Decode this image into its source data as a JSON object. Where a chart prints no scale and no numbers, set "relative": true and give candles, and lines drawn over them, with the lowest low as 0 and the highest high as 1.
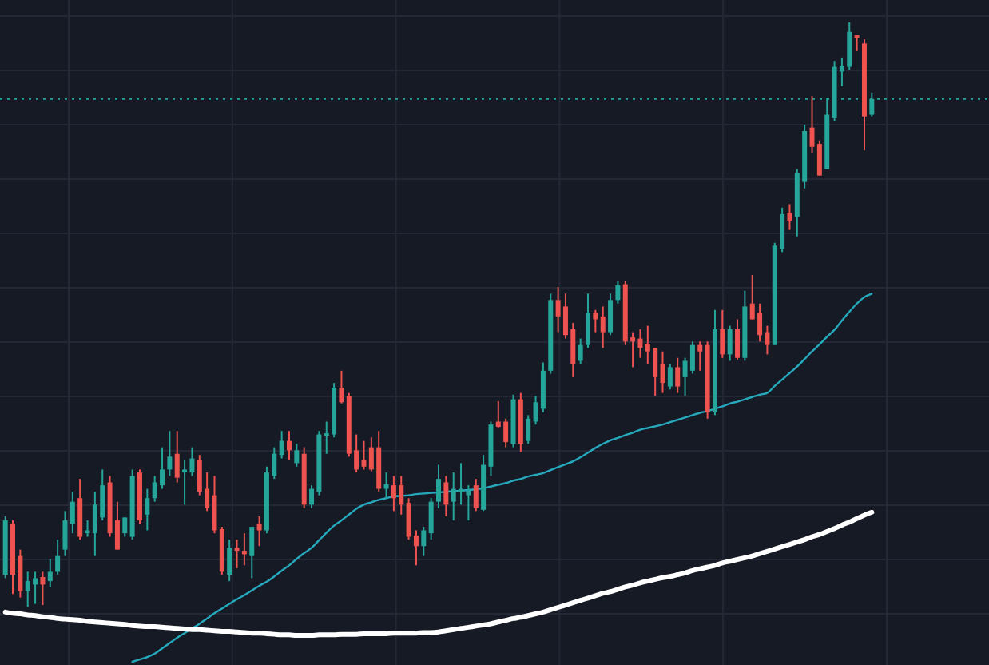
{
  "chart_data": {
    "type": "candlestick",
    "relative": true,
    "grid": true,
    "tick_labels": false,
    "categories": [
      null,
      null,
      null,
      null,
      null,
      null,
      null,
      null,
      null,
      null,
      null,
      null,
      null,
      null,
      null,
      null,
      null,
      null,
      null,
      null,
      null,
      null,
      null,
      null,
      null,
      null,
      null,
      null,
      null,
      null,
      null,
      null,
      null,
      null,
      null,
      null,
      null,
      null,
      null,
      null,
      null,
      null,
      null,
      null,
      null,
      null,
      null,
      null,
      null,
      null,
      null,
      null,
      null,
      null,
      null,
      null,
      null,
      null,
      null,
      null,
      null,
      null,
      null,
      null,
      null,
      null,
      null,
      null,
      null,
      null,
      null,
      null,
      null,
      null,
      null,
      null,
      null,
      null,
      null,
      null,
      null,
      null,
      null,
      null,
      null,
      null,
      null,
      null,
      null,
      null,
      null,
      null,
      null,
      null,
      null,
      null,
      null,
      null,
      null,
      null,
      null,
      null,
      null,
      null,
      null,
      null,
      null,
      null,
      null,
      null,
      null,
      null,
      null,
      null,
      null,
      null,
      null
    ],
    "ohlc": [
      [
        0.055,
        0.155,
        0.049,
        0.148
      ],
      [
        0.142,
        0.148,
        0.022,
        0.055
      ],
      [
        0.087,
        0.098,
        0.016,
        0.027
      ],
      [
        0.027,
        0.06,
        0,
        0.044
      ],
      [
        0.038,
        0.06,
        0.005,
        0.049
      ],
      [
        0.051,
        0.06,
        0.003,
        0.038
      ],
      [
        0.044,
        0.082,
        0.033,
        0.06
      ],
      [
        0.06,
        0.115,
        0.055,
        0.087
      ],
      [
        0.098,
        0.164,
        0.087,
        0.148
      ],
      [
        0.142,
        0.197,
        0.126,
        0.18
      ],
      [
        0.186,
        0.219,
        0.115,
        0.12
      ],
      [
        0.126,
        0.148,
        0.12,
        0.131
      ],
      [
        0.126,
        0.197,
        0.087,
        0.175
      ],
      [
        0.153,
        0.235,
        0.148,
        0.208
      ],
      [
        0.213,
        0.224,
        0.12,
        0.126
      ],
      [
        0.148,
        0.18,
        0.098,
        0.098
      ],
      [
        0.126,
        0.153,
        0.12,
        0.153
      ],
      [
        0.12,
        0.235,
        0.115,
        0.224
      ],
      [
        0.23,
        0.235,
        0.142,
        0.148
      ],
      [
        0.158,
        0.202,
        0.131,
        0.186
      ],
      [
        0.186,
        0.224,
        0.18,
        0.213
      ],
      [
        0.208,
        0.273,
        0.202,
        0.235
      ],
      [
        0.235,
        0.301,
        0.224,
        0.257
      ],
      [
        0.262,
        0.301,
        0.213,
        0.221
      ],
      [
        0.23,
        0.251,
        0.175,
        0.235
      ],
      [
        0.23,
        0.273,
        0.224,
        0.254
      ],
      [
        0.251,
        0.26,
        0.191,
        0.197
      ],
      [
        0.202,
        0.23,
        0.164,
        0.169
      ],
      [
        0.191,
        0.224,
        0.126,
        0.131
      ],
      [
        0.133,
        0.137,
        0.055,
        0.06
      ],
      [
        0.055,
        0.115,
        0.044,
        0.101
      ],
      [
        0.101,
        0.115,
        0.066,
        0.096
      ],
      [
        0.096,
        0.126,
        0.071,
        0.09
      ],
      [
        0.087,
        0.137,
        0.049,
        0.137
      ],
      [
        0.142,
        0.155,
        0.104,
        0.131
      ],
      [
        0.131,
        0.24,
        0.126,
        0.23
      ],
      [
        0.224,
        0.273,
        0.219,
        0.262
      ],
      [
        0.26,
        0.301,
        0.254,
        0.284
      ],
      [
        0.284,
        0.301,
        0.251,
        0.268
      ],
      [
        0.246,
        0.279,
        0.24,
        0.268
      ],
      [
        0.262,
        0.273,
        0.169,
        0.175
      ],
      [
        0.175,
        0.208,
        0.169,
        0.202
      ],
      [
        0.197,
        0.301,
        0.191,
        0.295
      ],
      [
        0.293,
        0.317,
        0.262,
        0.297
      ],
      [
        0.295,
        0.383,
        0.29,
        0.375
      ],
      [
        0.375,
        0.404,
        0.348,
        0.35
      ],
      [
        0.361,
        0.366,
        0.257,
        0.262
      ],
      [
        0.268,
        0.295,
        0.23,
        0.235
      ],
      [
        0.251,
        0.284,
        0.235,
        0.24
      ],
      [
        0.273,
        0.29,
        0.232,
        0.235
      ],
      [
        0.273,
        0.301,
        0.197,
        0.202
      ],
      [
        0.202,
        0.23,
        0.186,
        0.21
      ],
      [
        0.208,
        0.224,
        0.164,
        0.186
      ],
      [
        0.208,
        0.224,
        0.158,
        0.175
      ],
      [
        0.178,
        0.186,
        0.115,
        0.12
      ],
      [
        0.122,
        0.131,
        0.071,
        0.104
      ],
      [
        0.104,
        0.137,
        0.087,
        0.131
      ],
      [
        0.126,
        0.186,
        0.115,
        0.18
      ],
      [
        0.18,
        0.243,
        0.169,
        0.219
      ],
      [
        0.213,
        0.224,
        0.155,
        0.175
      ],
      [
        0.18,
        0.23,
        0.148,
        0.202
      ],
      [
        0.197,
        0.246,
        0.175,
        0.202
      ],
      [
        0.191,
        0.208,
        0.148,
        0.199
      ],
      [
        0.208,
        0.219,
        0.164,
        0.169
      ],
      [
        0.166,
        0.26,
        0.164,
        0.243
      ],
      [
        0.24,
        0.317,
        0.224,
        0.312
      ],
      [
        0.317,
        0.352,
        0.306,
        0.308
      ],
      [
        0.317,
        0.322,
        0.273,
        0.282
      ],
      [
        0.279,
        0.363,
        0.273,
        0.355
      ],
      [
        0.355,
        0.366,
        0.265,
        0.279
      ],
      [
        0.284,
        0.328,
        0.279,
        0.322
      ],
      [
        0.317,
        0.361,
        0.312,
        0.35
      ],
      [
        0.339,
        0.418,
        0.333,
        0.404
      ],
      [
        0.404,
        0.536,
        0.399,
        0.525
      ],
      [
        0.525,
        0.547,
        0.47,
        0.497
      ],
      [
        0.514,
        0.536,
        0.459,
        0.465
      ],
      [
        0.475,
        0.486,
        0.393,
        0.415
      ],
      [
        0.421,
        0.459,
        0.415,
        0.448
      ],
      [
        0.448,
        0.536,
        0.443,
        0.503
      ],
      [
        0.503,
        0.508,
        0.47,
        0.492
      ],
      [
        0.497,
        0.514,
        0.443,
        0.47
      ],
      [
        0.47,
        0.536,
        0.465,
        0.525
      ],
      [
        0.525,
        0.557,
        0.519,
        0.55
      ],
      [
        0.552,
        0.557,
        0.448,
        0.454
      ],
      [
        0.461,
        0.47,
        0.41,
        0.454
      ],
      [
        0.459,
        0.475,
        0.426,
        0.443
      ],
      [
        0.45,
        0.481,
        0.415,
        0.437
      ],
      [
        0.443,
        0.443,
        0.361,
        0.393
      ],
      [
        0.415,
        0.437,
        0.366,
        0.383
      ],
      [
        0.377,
        0.415,
        0.372,
        0.41
      ],
      [
        0.41,
        0.426,
        0.366,
        0.377
      ],
      [
        0.393,
        0.426,
        0.361,
        0.421
      ],
      [
        0.404,
        0.454,
        0.399,
        0.448
      ],
      [
        0.448,
        0.454,
        0.404,
        0.437
      ],
      [
        0.448,
        0.454,
        0.322,
        0.333
      ],
      [
        0.333,
        0.508,
        0.328,
        0.475
      ],
      [
        0.475,
        0.508,
        0.426,
        0.432
      ],
      [
        0.432,
        0.481,
        0.421,
        0.475
      ],
      [
        0.475,
        0.492,
        0.423,
        0.426
      ],
      [
        0.426,
        0.541,
        0.421,
        0.514
      ],
      [
        0.519,
        0.568,
        0.492,
        0.492
      ],
      [
        0.503,
        0.519,
        0.454,
        0.465
      ],
      [
        0.47,
        0.481,
        0.432,
        0.448
      ],
      [
        0.448,
        0.623,
        0.448,
        0.618
      ],
      [
        0.612,
        0.683,
        0.607,
        0.672
      ],
      [
        0.674,
        0.689,
        0.645,
        0.661
      ],
      [
        0.667,
        0.749,
        0.634,
        0.743
      ],
      [
        0.727,
        0.825,
        0.716,
        0.814
      ],
      [
        0.82,
        0.874,
        0.776,
        0.787
      ],
      [
        0.792,
        0.798,
        0.738,
        0.738
      ],
      [
        0.749,
        0.871,
        0.749,
        0.842
      ],
      [
        0.836,
        0.934,
        0.831,
        0.924
      ],
      [
        0.916,
        0.94,
        0.891,
        0.926
      ],
      [
        0.924,
        1,
        0.918,
        0.984
      ],
      [
        0.978,
        0.978,
        0.951,
        0.973
      ],
      [
        0.964,
        0.971,
        0.781,
        0.839
      ],
      [
        0.842,
        0.88,
        0.839,
        0.869
      ]
    ],
    "colors": [
      "#26a69a",
      "#ef5350",
      "#ef5350",
      "#26a69a",
      "#26a69a",
      "#ef5350",
      "#26a69a",
      "#26a69a",
      "#26a69a",
      "#26a69a",
      "#ef5350",
      "#26a69a",
      "#26a69a",
      "#26a69a",
      "#ef5350",
      "#ef5350",
      "#26a69a",
      "#26a69a",
      "#ef5350",
      "#26a69a",
      "#26a69a",
      "#26a69a",
      "#26a69a",
      "#ef5350",
      "#26a69a",
      "#26a69a",
      "#ef5350",
      "#ef5350",
      "#ef5350",
      "#ef5350",
      "#26a69a",
      "#ef5350",
      "#ef5350",
      "#26a69a",
      "#ef5350",
      "#26a69a",
      "#26a69a",
      "#26a69a",
      "#ef5350",
      "#26a69a",
      "#ef5350",
      "#26a69a",
      "#26a69a",
      "#26a69a",
      "#26a69a",
      "#ef5350",
      "#ef5350",
      "#ef5350",
      "#ef5350",
      "#ef5350",
      "#ef5350",
      "#26a69a",
      "#ef5350",
      "#ef5350",
      "#ef5350",
      "#ef5350",
      "#26a69a",
      "#26a69a",
      "#26a69a",
      "#ef5350",
      "#26a69a",
      "#26a69a",
      "#26a69a",
      "#ef5350",
      "#26a69a",
      "#26a69a",
      "#ef5350",
      "#ef5350",
      "#26a69a",
      "#ef5350",
      "#26a69a",
      "#26a69a",
      "#26a69a",
      "#26a69a",
      "#ef5350",
      "#ef5350",
      "#ef5350",
      "#26a69a",
      "#26a69a",
      "#ef5350",
      "#ef5350",
      "#26a69a",
      "#26a69a",
      "#ef5350",
      "#ef5350",
      "#ef5350",
      "#ef5350",
      "#ef5350",
      "#ef5350",
      "#26a69a",
      "#ef5350",
      "#26a69a",
      "#26a69a",
      "#ef5350",
      "#ef5350",
      "#26a69a",
      "#ef5350",
      "#26a69a",
      "#ef5350",
      "#26a69a",
      "#ef5350",
      "#ef5350",
      "#ef5350",
      "#26a69a",
      "#26a69a",
      "#ef5350",
      "#26a69a",
      "#26a69a",
      "#ef5350",
      "#ef5350",
      "#26a69a",
      "#26a69a",
      "#26a69a",
      "#26a69a",
      "#ef5350",
      "#ef5350",
      "#26a69a"
    ],
    "series": [
      {
        "type": "line",
        "color": "#26a9bd",
        "values": [
          null,
          null,
          null,
          null,
          null,
          null,
          null,
          null,
          null,
          null,
          null,
          null,
          null,
          null,
          null,
          null,
          null,
          -0.094,
          -0.09,
          -0.086,
          -0.08,
          -0.071,
          -0.062,
          -0.053,
          -0.045,
          -0.037,
          -0.029,
          -0.02,
          -0.011,
          -0.003,
          0.005,
          0.013,
          0.02,
          0.028,
          0.036,
          0.043,
          0.052,
          0.062,
          0.071,
          0.082,
          0.092,
          0.101,
          0.114,
          0.127,
          0.139,
          0.148,
          0.158,
          0.168,
          0.175,
          0.179,
          0.183,
          0.186,
          0.189,
          0.19,
          0.191,
          0.193,
          0.194,
          0.195,
          0.196,
          0.197,
          0.198,
          0.199,
          0.2,
          0.201,
          0.203,
          0.206,
          0.209,
          0.212,
          0.216,
          0.219,
          0.223,
          0.226,
          0.229,
          0.234,
          0.239,
          0.244,
          0.249,
          0.256,
          0.264,
          0.272,
          0.279,
          0.285,
          0.289,
          0.294,
          0.298,
          0.303,
          0.306,
          0.309,
          0.312,
          0.316,
          0.32,
          0.324,
          0.328,
          0.332,
          0.335,
          0.339,
          0.343,
          0.348,
          0.351,
          0.355,
          0.359,
          0.363,
          0.366,
          0.378,
          0.389,
          0.4,
          0.411,
          0.424,
          0.437,
          0.449,
          0.462,
          0.474,
          0.49,
          0.505,
          0.519,
          0.53,
          0.536
        ]
      },
      {
        "type": "line",
        "color": "#ffffff",
        "values": [
          -0.009,
          -0.011,
          -0.012,
          -0.014,
          -0.015,
          -0.017,
          -0.018,
          -0.02,
          -0.021,
          -0.022,
          -0.023,
          -0.025,
          -0.026,
          -0.027,
          -0.028,
          -0.029,
          -0.03,
          -0.032,
          -0.033,
          -0.034,
          -0.034,
          -0.035,
          -0.036,
          -0.037,
          -0.038,
          -0.039,
          -0.039,
          -0.04,
          -0.041,
          -0.042,
          -0.042,
          -0.043,
          -0.044,
          -0.045,
          -0.045,
          -0.046,
          -0.047,
          -0.048,
          -0.048,
          -0.049,
          -0.049,
          -0.049,
          -0.048,
          -0.048,
          -0.048,
          -0.047,
          -0.047,
          -0.047,
          -0.046,
          -0.046,
          -0.046,
          -0.046,
          -0.045,
          -0.045,
          -0.045,
          -0.045,
          -0.044,
          -0.044,
          -0.043,
          -0.041,
          -0.039,
          -0.037,
          -0.035,
          -0.033,
          -0.031,
          -0.029,
          -0.026,
          -0.023,
          -0.02,
          -0.018,
          -0.015,
          -0.012,
          -0.009,
          -0.005,
          -0.001,
          0.003,
          0.007,
          0.011,
          0.015,
          0.019,
          0.023,
          0.026,
          0.03,
          0.034,
          0.037,
          0.041,
          0.044,
          0.047,
          0.05,
          0.052,
          0.055,
          0.058,
          0.062,
          0.065,
          0.068,
          0.071,
          0.075,
          0.078,
          0.081,
          0.084,
          0.087,
          0.091,
          0.095,
          0.099,
          0.103,
          0.107,
          0.111,
          0.115,
          0.12,
          0.124,
          0.129,
          0.134,
          0.14,
          0.145,
          0.151,
          0.157,
          0.162
        ]
      }
    ],
    "ref_lines": [
      {
        "axis": "y",
        "value": 0.869,
        "color": "#26a69a",
        "line_style": "dotted"
      }
    ]
  }
}
